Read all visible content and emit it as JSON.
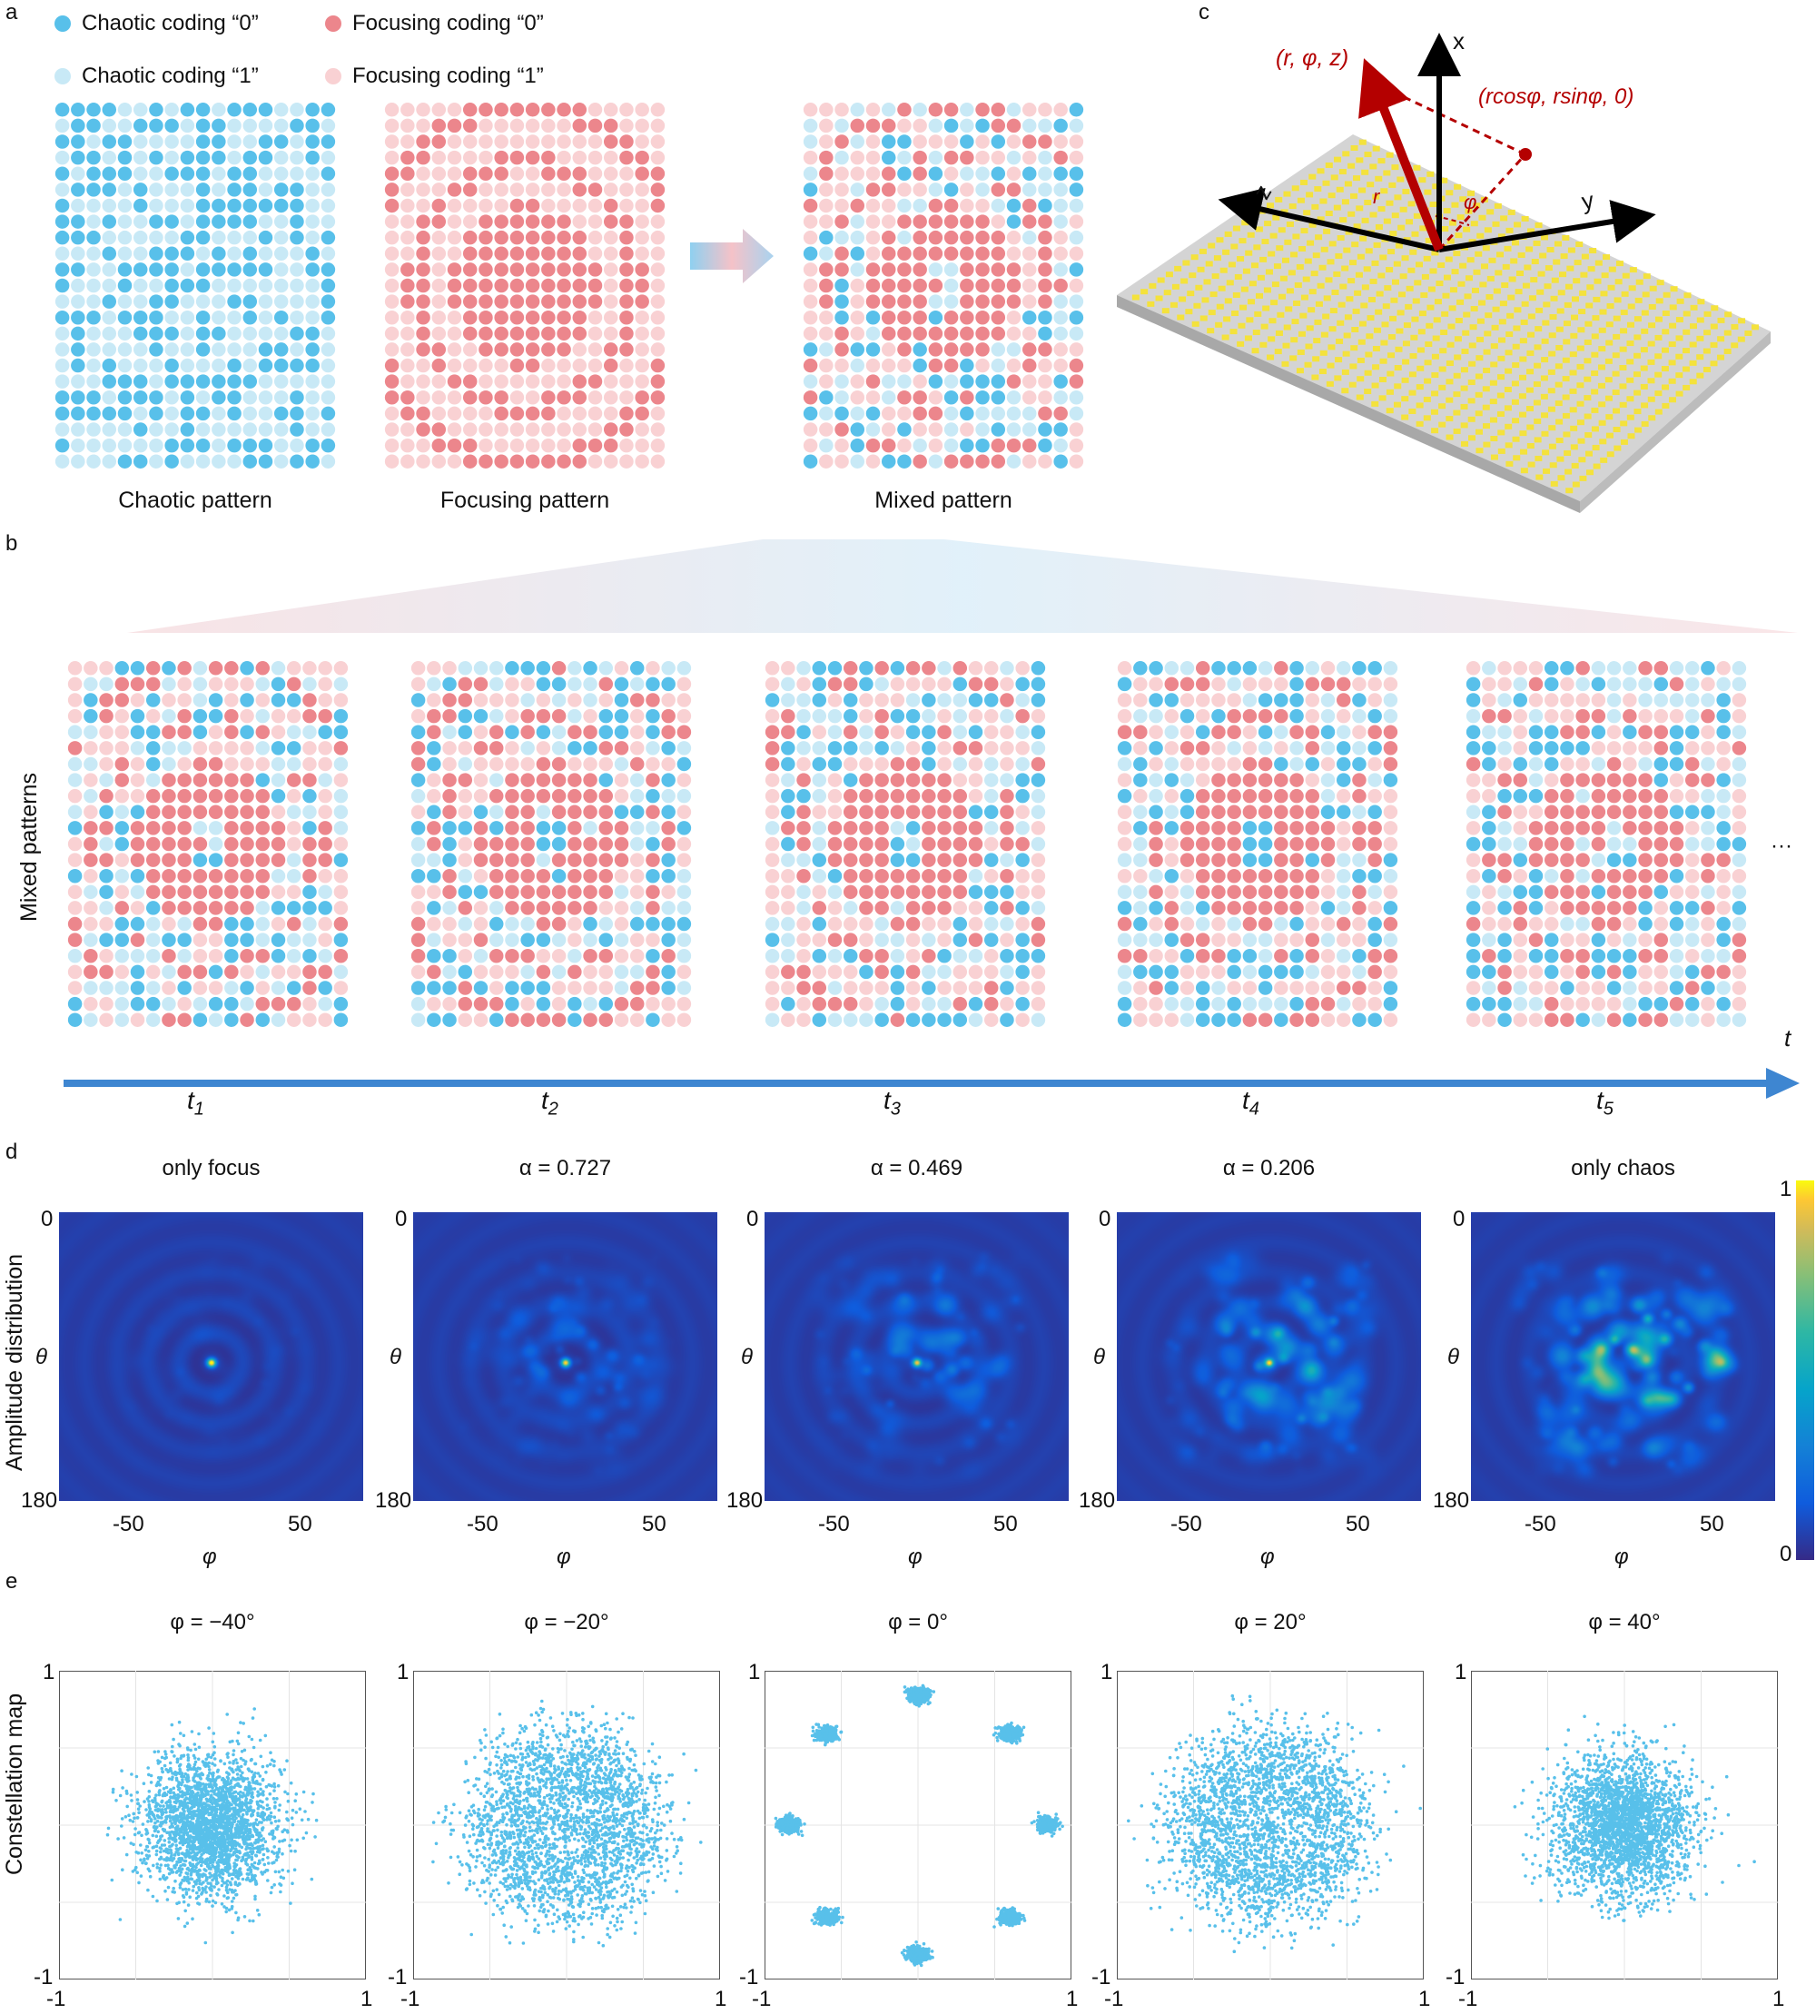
{
  "panels": {
    "a": "a",
    "b": "b",
    "c": "c",
    "d": "d",
    "e": "e"
  },
  "colors": {
    "chaotic0": "#58c0ea",
    "chaotic1": "#c8e9f6",
    "focus0": "#ec868c",
    "focus1": "#f9d1d3",
    "arrow_red": "#b40000",
    "patch_yellow": "#f4e23c",
    "axis_blue": "#3e86d1"
  },
  "legend": [
    {
      "label": "Chaotic coding “0”",
      "color": "#58c0ea"
    },
    {
      "label": "Focusing coding “0”",
      "color": "#ec868c"
    },
    {
      "label": "Chaotic coding “1”",
      "color": "#c8e9f6"
    },
    {
      "label": "Focusing coding “1”",
      "color": "#f9d1d3"
    }
  ],
  "panel_a": {
    "captions": [
      "Chaotic pattern",
      "Focusing pattern",
      "Mixed pattern"
    ]
  },
  "panel_b": {
    "ylabel": "Mixed patterns",
    "ellipsis": "···",
    "time_axis": "t",
    "ticks": [
      "1",
      "2",
      "3",
      "4",
      "5"
    ]
  },
  "panel_c": {
    "point_label": "(r, φ, z)",
    "proj_label": "(rcosφ, rsinφ, 0)",
    "axis_x": "x",
    "axis_y": "y",
    "axis_z": "z",
    "r": "r",
    "phi": "φ"
  },
  "panel_d": {
    "ylabel": "Amplitude distribution",
    "titles": [
      "only focus",
      "α = 0.727",
      "α = 0.469",
      "α = 0.206",
      "only chaos"
    ],
    "y_top": "0",
    "y_bottom": "180",
    "y_name": "θ",
    "x_ticks": [
      "-50",
      "50"
    ],
    "x_name": "φ",
    "colorbar": {
      "max": "1",
      "min": "0"
    }
  },
  "panel_e": {
    "ylabel": "Constellation map",
    "titles": [
      "φ = −40°",
      "φ = −20°",
      "φ = 0°",
      "φ = 20°",
      "φ = 40°"
    ],
    "y_top": "1",
    "y_bottom": "-1",
    "x_left": "-1",
    "x_right": "1"
  }
}
